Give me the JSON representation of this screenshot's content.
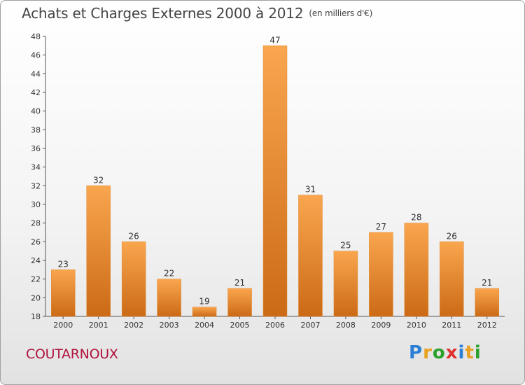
{
  "header": {
    "title": "Achats et Charges Externes 2000 à 2012",
    "unit_note": "(en milliers d'€)"
  },
  "footer": {
    "commune": "COUTARNOUX",
    "logo": [
      "P",
      "r",
      "o",
      "x",
      "i",
      "t",
      "i"
    ],
    "logo_colors": [
      "#2a7fd4",
      "#e8a020",
      "#2ca02c",
      "#e03030",
      "#2a7fd4",
      "#e8a020",
      "#2ca02c"
    ]
  },
  "colors": {
    "bar_light": "#f9a64f",
    "bar_dark": "#cc6a16",
    "accent": "#b0123d"
  },
  "chart_data": {
    "type": "bar",
    "title": "Achats et Charges Externes 2000 à 2012",
    "subtitle": "(en milliers d'€)",
    "categories": [
      "2000",
      "2001",
      "2002",
      "2003",
      "2004",
      "2005",
      "2006",
      "2007",
      "2008",
      "2009",
      "2010",
      "2011",
      "2012"
    ],
    "values": [
      23,
      32,
      26,
      22,
      19,
      21,
      47,
      31,
      25,
      27,
      28,
      26,
      21
    ],
    "ylim": [
      18,
      48
    ],
    "yticks": [
      18,
      20,
      22,
      24,
      26,
      28,
      30,
      32,
      34,
      36,
      38,
      40,
      42,
      44,
      46,
      48
    ],
    "grid": false,
    "legend": "none"
  }
}
